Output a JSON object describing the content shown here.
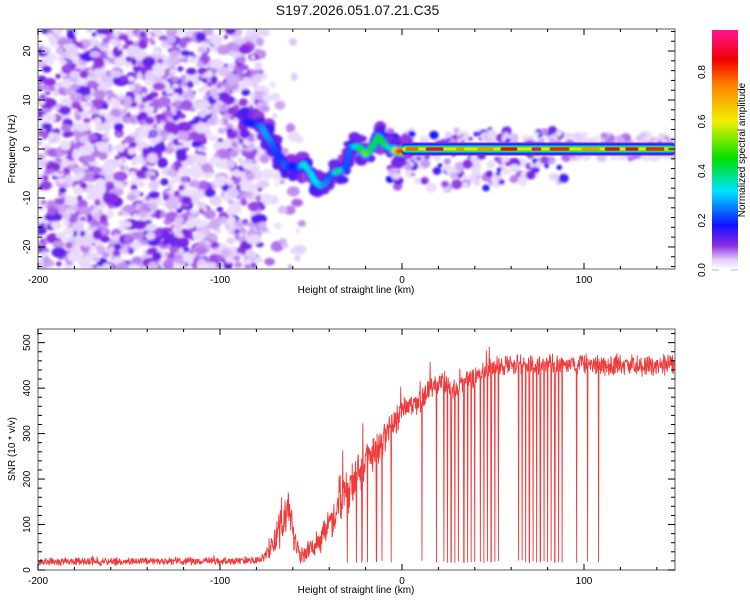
{
  "figure": {
    "title": "S197.2026.051.07.21.C35"
  },
  "chart_data": [
    {
      "id": "spectrogram",
      "type": "heatmap",
      "title": "",
      "xlabel": "Height of straight line (km)",
      "ylabel": "Frequency (Hz)",
      "xlim": [
        -200,
        150
      ],
      "ylim": [
        -24.5,
        24.5
      ],
      "xticks": [
        -200,
        -100,
        0,
        100
      ],
      "xtick_labels": [
        "-200",
        "-100",
        "0",
        "100"
      ],
      "x_minor_step": 20,
      "yticks": [
        -20,
        -10,
        0,
        10,
        20
      ],
      "ytick_labels": [
        "-20",
        "-10",
        "0",
        "10",
        "20"
      ],
      "y_minor_step": 2,
      "grid": false,
      "colorbar": {
        "label": "Normalized spectral amplitude",
        "range": [
          0.0,
          0.97
        ],
        "ticks": [
          0.0,
          0.2,
          0.4,
          0.6,
          0.8
        ],
        "tick_labels": [
          "0.0",
          "0.2",
          "0.4",
          "0.6",
          "0.8"
        ],
        "colormap_stops": [
          {
            "v": 0.0,
            "color": "#ffffff"
          },
          {
            "v": 0.04,
            "color": "#e4d2fb"
          },
          {
            "v": 0.1,
            "color": "#8a2be2"
          },
          {
            "v": 0.18,
            "color": "#1010ff"
          },
          {
            "v": 0.32,
            "color": "#00e5ff"
          },
          {
            "v": 0.45,
            "color": "#00e000"
          },
          {
            "v": 0.6,
            "color": "#f0f000"
          },
          {
            "v": 0.75,
            "color": "#ff8000"
          },
          {
            "v": 0.85,
            "color": "#f00000"
          },
          {
            "v": 0.97,
            "color": "#ff1493"
          }
        ]
      },
      "regions": [
        {
          "name": "noise-field",
          "x_range": [
            -200,
            -77
          ],
          "freq_range": [
            -24.5,
            24.5
          ],
          "amplitude_range": [
            0.03,
            0.14
          ]
        },
        {
          "name": "sparse-noise",
          "x_range": [
            -77,
            -55
          ],
          "freq_range": [
            -24.5,
            24.5
          ],
          "amplitude_range": [
            0.03,
            0.08
          ]
        }
      ],
      "signal_track": [
        {
          "x": -85,
          "f": 5.5,
          "a": 0.16
        },
        {
          "x": -80,
          "f": 5.0,
          "a": 0.2
        },
        {
          "x": -77,
          "f": 4.5,
          "a": 0.26
        },
        {
          "x": -75,
          "f": 3.0,
          "a": 0.28
        },
        {
          "x": -73,
          "f": 2.0,
          "a": 0.26
        },
        {
          "x": -70,
          "f": 0.0,
          "a": 0.22
        },
        {
          "x": -67,
          "f": -2.0,
          "a": 0.2
        },
        {
          "x": -64,
          "f": -3.5,
          "a": 0.24
        },
        {
          "x": -60,
          "f": -3.5,
          "a": 0.18
        },
        {
          "x": -57,
          "f": -4.0,
          "a": 0.2
        },
        {
          "x": -54,
          "f": -3.0,
          "a": 0.36
        },
        {
          "x": -51,
          "f": -4.5,
          "a": 0.3
        },
        {
          "x": -48,
          "f": -6.5,
          "a": 0.34
        },
        {
          "x": -45,
          "f": -7.5,
          "a": 0.3
        },
        {
          "x": -42,
          "f": -7.0,
          "a": 0.26
        },
        {
          "x": -38,
          "f": -5.0,
          "a": 0.22
        },
        {
          "x": -35,
          "f": -4.5,
          "a": 0.44
        },
        {
          "x": -31,
          "f": -4.0,
          "a": 0.22
        },
        {
          "x": -28,
          "f": 0.5,
          "a": 0.24
        },
        {
          "x": -24,
          "f": 0.5,
          "a": 0.38
        },
        {
          "x": -20,
          "f": -1.0,
          "a": 0.52
        },
        {
          "x": -16,
          "f": 0.5,
          "a": 0.42
        },
        {
          "x": -13,
          "f": 2.5,
          "a": 0.42
        },
        {
          "x": -10,
          "f": 1.0,
          "a": 0.46
        },
        {
          "x": -6,
          "f": 0.0,
          "a": 0.3
        },
        {
          "x": -2,
          "f": -0.5,
          "a": 0.8
        },
        {
          "x": 0,
          "f": -0.5,
          "a": 0.9
        },
        {
          "x": 2,
          "f": 0.0,
          "a": 0.8
        }
      ],
      "carrier_line": {
        "x_range": [
          0,
          150
        ],
        "freq": 0.0,
        "peak_amplitude": 0.9,
        "bandwidth_hz": 2.5
      },
      "sideband_clusters": [
        {
          "x_range": [
            -8,
            50
          ],
          "freq_range": [
            -8,
            4
          ],
          "amplitude_range": [
            0.03,
            0.18
          ]
        },
        {
          "x_range": [
            52,
            90
          ],
          "freq_range": [
            -7,
            4
          ],
          "amplitude_range": [
            0.03,
            0.18
          ]
        },
        {
          "x_range": [
            90,
            150
          ],
          "freq_range": [
            -2,
            3
          ],
          "amplitude_range": [
            0.03,
            0.08
          ]
        }
      ]
    },
    {
      "id": "snr",
      "type": "line",
      "title": "",
      "xlabel": "Height of straight line (km)",
      "ylabel": "SNR (10 * v/v)",
      "xlim": [
        -200,
        150
      ],
      "ylim": [
        0,
        530
      ],
      "xticks": [
        -200,
        -100,
        0,
        100
      ],
      "xtick_labels": [
        "-200",
        "-100",
        "0",
        "100"
      ],
      "x_minor_step": 20,
      "yticks": [
        0,
        100,
        200,
        300,
        400,
        500
      ],
      "ytick_labels": [
        "0",
        "100",
        "200",
        "300",
        "400",
        "500"
      ],
      "y_minor_step": 20,
      "grid": false,
      "line_color": "#f03030",
      "series": [
        {
          "name": "SNR",
          "x": [
            -200,
            -180,
            -160,
            -140,
            -120,
            -100,
            -90,
            -80,
            -75,
            -70,
            -66,
            -62,
            -59,
            -56,
            -52,
            -48,
            -44,
            -40,
            -36,
            -32,
            -28,
            -24,
            -20,
            -16,
            -12,
            -8,
            -4,
            0,
            5,
            10,
            15,
            20,
            25,
            30,
            35,
            40,
            45,
            50,
            55,
            60,
            70,
            80,
            90,
            100,
            110,
            120,
            130,
            140,
            150
          ],
          "y": [
            18,
            19,
            18,
            20,
            19,
            20,
            20,
            22,
            28,
            65,
            110,
            140,
            70,
            30,
            40,
            55,
            75,
            95,
            120,
            160,
            185,
            205,
            230,
            250,
            270,
            300,
            320,
            350,
            360,
            370,
            395,
            410,
            400,
            395,
            415,
            425,
            440,
            445,
            450,
            455,
            450,
            455,
            450,
            455,
            450,
            452,
            450,
            448,
            452
          ],
          "noise_amplitude": [
            10,
            10,
            10,
            10,
            10,
            10,
            10,
            10,
            15,
            40,
            60,
            50,
            35,
            20,
            25,
            30,
            40,
            45,
            55,
            60,
            55,
            55,
            55,
            50,
            45,
            40,
            38,
            35,
            30,
            30,
            30,
            28,
            28,
            28,
            28,
            28,
            28,
            26,
            26,
            26,
            26,
            26,
            26,
            26,
            26,
            26,
            26,
            26,
            26
          ]
        }
      ],
      "dropouts_x": [
        -30,
        -25,
        -22,
        -19,
        -14,
        -11,
        -6,
        11,
        19,
        23,
        25,
        27,
        29,
        31,
        34,
        36,
        38,
        40,
        43,
        45,
        47,
        49,
        51,
        53,
        64,
        66,
        68,
        70,
        72,
        74,
        76,
        78,
        80,
        82,
        84,
        86,
        88,
        96,
        102,
        108
      ],
      "dropout_floor": 15,
      "peak_max": 535
    }
  ]
}
